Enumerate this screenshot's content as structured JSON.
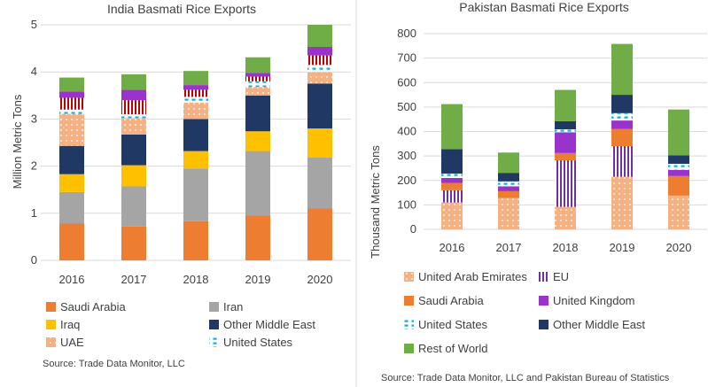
{
  "colors": {
    "Saudi Arabia": "#ED7D31",
    "Iran": "#A5A5A5",
    "Iraq": "#FFC000",
    "Other Middle East": "#203864",
    "UAE": "#F4B183",
    "United States": "#00B0F0",
    "EU": "#7030A0",
    "United Kingdom": "#9933CC",
    "Rest of World": "#70AD47",
    "United Arab Emirates": "#F4B183"
  },
  "chart_data": [
    {
      "type": "bar",
      "stacked": true,
      "title": "India Basmati Rice Exports",
      "ylabel": "Million Metric Tons",
      "xlabel": "",
      "ylim": [
        0,
        5
      ],
      "yticks": [
        0,
        1,
        2,
        3,
        4,
        5
      ],
      "categories": [
        "2016",
        "2017",
        "2018",
        "2019",
        "2020"
      ],
      "grid": true,
      "legend_position": "bottom",
      "legend_entries": [
        "Saudi Arabia",
        "Iran",
        "Iraq",
        "Other Middle East",
        "UAE",
        "United States"
      ],
      "series": [
        {
          "name": "Saudi Arabia",
          "values": [
            0.78,
            0.72,
            0.83,
            0.95,
            1.1
          ]
        },
        {
          "name": "Iran",
          "values": [
            0.67,
            0.85,
            1.12,
            1.37,
            1.08
          ]
        },
        {
          "name": "Iraq",
          "values": [
            0.38,
            0.45,
            0.37,
            0.42,
            0.62
          ]
        },
        {
          "name": "Other Middle East",
          "values": [
            0.6,
            0.65,
            0.68,
            0.76,
            0.95
          ]
        },
        {
          "name": "UAE",
          "values": [
            0.68,
            0.35,
            0.35,
            0.18,
            0.25
          ]
        },
        {
          "name": "United States",
          "values": [
            0.09,
            0.08,
            0.12,
            0.12,
            0.15
          ]
        },
        {
          "name": "",
          "values": [
            0.25,
            0.3,
            0.15,
            0.1,
            0.2
          ]
        },
        {
          "name": "",
          "values": [
            0.13,
            0.22,
            0.1,
            0.08,
            0.18
          ]
        },
        {
          "name": "",
          "values": [
            0.3,
            0.33,
            0.3,
            0.33,
            0.47
          ]
        }
      ],
      "source": "Source: Trade Data Monitor, LLC"
    },
    {
      "type": "bar",
      "stacked": true,
      "title": "Pakistan Basmati Rice Exports",
      "ylabel": "Thousand Metric Tons",
      "xlabel": "",
      "ylim": [
        0,
        800
      ],
      "yticks": [
        0,
        100,
        200,
        300,
        400,
        500,
        600,
        700,
        800
      ],
      "categories": [
        "2016",
        "2017",
        "2018",
        "2019",
        "2020"
      ],
      "grid": true,
      "legend_position": "bottom",
      "legend_entries": [
        "United Arab Emirates",
        "EU",
        "Saudi Arabia",
        "United Kingdom",
        "United States",
        "Other Middle East",
        "Rest of World"
      ],
      "series": [
        {
          "name": "United Arab Emirates",
          "values": [
            110,
            128,
            92,
            215,
            138
          ]
        },
        {
          "name": "EU",
          "values": [
            50,
            0,
            190,
            125,
            0
          ]
        },
        {
          "name": "Saudi Arabia",
          "values": [
            30,
            28,
            30,
            70,
            80
          ]
        },
        {
          "name": "United Kingdom",
          "values": [
            20,
            20,
            85,
            35,
            25
          ]
        },
        {
          "name": "United States",
          "values": [
            18,
            20,
            12,
            30,
            25
          ]
        },
        {
          "name": "Other Middle East",
          "values": [
            100,
            35,
            33,
            75,
            35
          ]
        },
        {
          "name": "Rest of World",
          "values": [
            184,
            83,
            128,
            208,
            187
          ]
        }
      ],
      "source": "Source: Trade Data Monitor, LLC and Pakistan Bureau of Statistics"
    }
  ]
}
